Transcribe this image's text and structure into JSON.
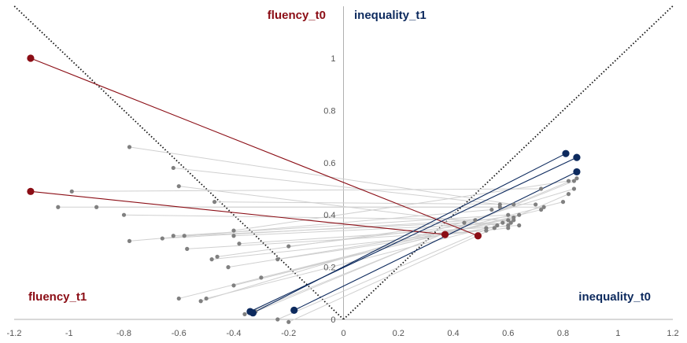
{
  "chart_data": {
    "type": "scatter",
    "title": "",
    "xlabel": "",
    "ylabel": "",
    "xlim": [
      -1.2,
      1.2
    ],
    "ylim": [
      0,
      1.05
    ],
    "x_ticks": [
      "-1.2",
      "-1",
      "-0.8",
      "-0.6",
      "-0.4",
      "-0.2",
      "0",
      "0.2",
      "0.4",
      "0.6",
      "0.8",
      "1",
      "1.2"
    ],
    "y_ticks": [
      "0",
      "0.2",
      "0.4",
      "0.6",
      "0.8",
      "1"
    ],
    "grid": false,
    "corner_labels": {
      "top_left": "fluency_t0",
      "top_right": "inequality_t1",
      "bottom_left": "fluency_t1",
      "bottom_right": "inequality_t0"
    },
    "colors": {
      "fluency": "#8b0d15",
      "inequality": "#0d2a5e",
      "other_points": "#808080",
      "other_lines": "#d0d0d0",
      "axis": "#b0b0b0",
      "diagonal": "#111111"
    },
    "highlighted_fluency": [
      {
        "from": [
          -1.14,
          1.0
        ],
        "to": [
          0.49,
          0.32
        ]
      },
      {
        "from": [
          -1.14,
          0.49
        ],
        "to": [
          0.37,
          0.325
        ]
      }
    ],
    "highlighted_inequality": [
      {
        "from": [
          0.81,
          0.635
        ],
        "to": [
          -0.33,
          0.025
        ]
      },
      {
        "from": [
          0.85,
          0.62
        ],
        "to": [
          -0.34,
          0.03
        ]
      },
      {
        "from": [
          0.85,
          0.565
        ],
        "to": [
          -0.18,
          0.035
        ]
      }
    ],
    "other_connections": [
      {
        "from": [
          -0.78,
          0.66
        ],
        "to": [
          0.62,
          0.44
        ]
      },
      {
        "from": [
          -0.62,
          0.58
        ],
        "to": [
          0.57,
          0.44
        ]
      },
      {
        "from": [
          -0.6,
          0.51
        ],
        "to": [
          0.56,
          0.36
        ]
      },
      {
        "from": [
          -0.99,
          0.49
        ],
        "to": [
          0.72,
          0.5
        ]
      },
      {
        "from": [
          -1.04,
          0.43
        ],
        "to": [
          0.73,
          0.43
        ]
      },
      {
        "from": [
          -0.9,
          0.43
        ],
        "to": [
          0.57,
          0.43
        ]
      },
      {
        "from": [
          -0.8,
          0.4
        ],
        "to": [
          0.62,
          0.38
        ]
      },
      {
        "from": [
          -0.47,
          0.45
        ],
        "to": [
          0.7,
          0.44
        ]
      },
      {
        "from": [
          -0.78,
          0.3
        ],
        "to": [
          0.54,
          0.42
        ]
      },
      {
        "from": [
          -0.66,
          0.31
        ],
        "to": [
          0.48,
          0.38
        ]
      },
      {
        "from": [
          -0.62,
          0.32
        ],
        "to": [
          0.6,
          0.4
        ]
      },
      {
        "from": [
          -0.58,
          0.32
        ],
        "to": [
          0.44,
          0.37
        ]
      },
      {
        "from": [
          -0.4,
          0.32
        ],
        "to": [
          0.61,
          0.37
        ]
      },
      {
        "from": [
          -0.57,
          0.27
        ],
        "to": [
          0.52,
          0.34
        ]
      },
      {
        "from": [
          -0.48,
          0.23
        ],
        "to": [
          0.6,
          0.35
        ]
      },
      {
        "from": [
          -0.42,
          0.2
        ],
        "to": [
          0.58,
          0.37
        ]
      },
      {
        "from": [
          -0.38,
          0.29
        ],
        "to": [
          0.64,
          0.36
        ]
      },
      {
        "from": [
          -0.2,
          0.28
        ],
        "to": [
          0.6,
          0.38
        ]
      },
      {
        "from": [
          -0.4,
          0.13
        ],
        "to": [
          0.72,
          0.42
        ]
      },
      {
        "from": [
          -0.24,
          0.23
        ],
        "to": [
          0.6,
          0.36
        ]
      },
      {
        "from": [
          -0.5,
          0.08
        ],
        "to": [
          0.52,
          0.35
        ]
      },
      {
        "from": [
          -0.52,
          0.07
        ],
        "to": [
          0.84,
          0.5
        ]
      },
      {
        "from": [
          -0.6,
          0.08
        ],
        "to": [
          0.8,
          0.45
        ]
      },
      {
        "from": [
          -0.36,
          0.02
        ],
        "to": [
          0.84,
          0.53
        ]
      },
      {
        "from": [
          -0.32,
          0.03
        ],
        "to": [
          0.85,
          0.54
        ]
      },
      {
        "from": [
          -0.24,
          0.0
        ],
        "to": [
          0.82,
          0.48
        ]
      },
      {
        "from": [
          -0.2,
          -0.01
        ],
        "to": [
          0.55,
          0.35
        ]
      },
      {
        "from": [
          -0.4,
          0.34
        ],
        "to": [
          0.82,
          0.53
        ]
      },
      {
        "from": [
          -0.46,
          0.24
        ],
        "to": [
          0.64,
          0.4
        ]
      },
      {
        "from": [
          -0.3,
          0.16
        ],
        "to": [
          0.62,
          0.39
        ]
      }
    ]
  }
}
